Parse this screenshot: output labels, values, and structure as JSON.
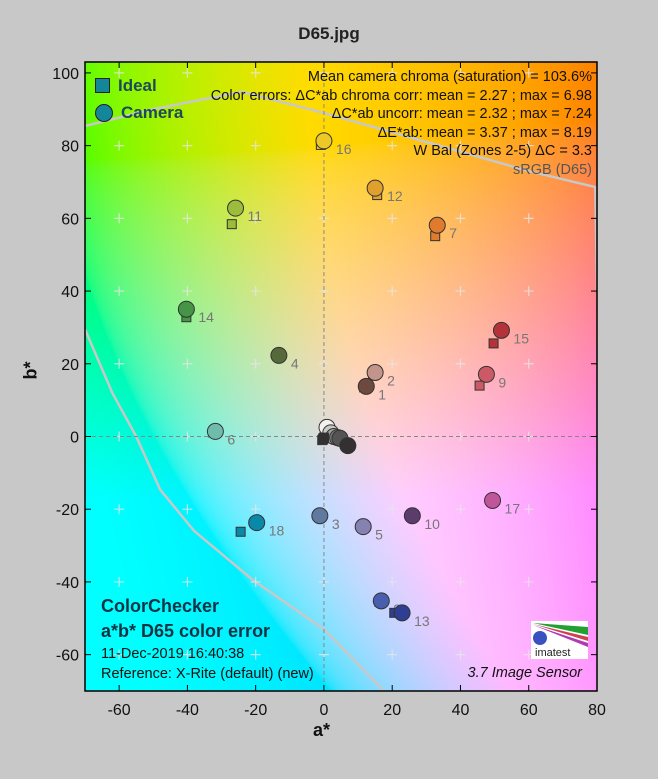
{
  "chart_data": {
    "type": "scatter",
    "title": "D65.jpg",
    "xlabel": "a*",
    "ylabel": "b*",
    "xlim": [
      -70,
      80
    ],
    "ylim": [
      -70,
      103
    ],
    "xticks": [
      -60,
      -40,
      -20,
      0,
      20,
      40,
      60,
      80
    ],
    "yticks": [
      -60,
      -40,
      -20,
      0,
      20,
      40,
      60,
      80,
      100
    ],
    "grid": "plus-markers every 20",
    "legend": {
      "placement": "top-left",
      "entries": [
        "Ideal",
        "Camera"
      ],
      "color": "#138699"
    },
    "points": [
      {
        "id": "1",
        "ideal": [
          11.8,
          13.5
        ],
        "camera": [
          12.4,
          13.8
        ],
        "color": "#6e4a3e"
      },
      {
        "id": "2",
        "ideal": [
          14.4,
          17.1
        ],
        "camera": [
          15.0,
          17.6
        ],
        "color": "#c2948a"
      },
      {
        "id": "3",
        "ideal": [
          -1.2,
          -21.8
        ],
        "camera": [
          -1.2,
          -21.8
        ],
        "color": "#5f7a9e"
      },
      {
        "id": "4",
        "ideal": [
          -13.5,
          22.0
        ],
        "camera": [
          -13.2,
          22.3
        ],
        "color": "#55693b"
      },
      {
        "id": "5",
        "ideal": [
          11.5,
          -24.8
        ],
        "camera": [
          11.5,
          -24.8
        ],
        "color": "#8582b2"
      },
      {
        "id": "6",
        "ideal": [
          -32.4,
          1.1
        ],
        "camera": [
          -31.8,
          1.4
        ],
        "color": "#70bcac"
      },
      {
        "id": "7",
        "ideal": [
          32.6,
          55.1
        ],
        "camera": [
          33.2,
          58.1
        ],
        "color": "#e07a2c"
      },
      {
        "id": "8",
        "ideal": [
          16.3,
          -45.5
        ],
        "camera": [
          16.8,
          -45.2
        ],
        "color": "#4a5eae"
      },
      {
        "id": "9",
        "ideal": [
          45.6,
          14.0
        ],
        "camera": [
          47.6,
          17.1
        ],
        "color": "#cc5a66"
      },
      {
        "id": "10",
        "ideal": [
          25.6,
          -22.0
        ],
        "camera": [
          25.9,
          -21.8
        ],
        "color": "#5c3c6c"
      },
      {
        "id": "11",
        "ideal": [
          -27.0,
          58.4
        ],
        "camera": [
          -25.9,
          62.8
        ],
        "color": "#9cbc3c"
      },
      {
        "id": "12",
        "ideal": [
          15.6,
          66.4
        ],
        "camera": [
          15.0,
          68.3
        ],
        "color": "#e0a02e"
      },
      {
        "id": "13",
        "ideal": [
          20.6,
          -48.5
        ],
        "camera": [
          22.9,
          -48.5
        ],
        "color": "#2e3e92"
      },
      {
        "id": "14",
        "ideal": [
          -40.3,
          32.8
        ],
        "camera": [
          -40.3,
          35.0
        ],
        "color": "#469446"
      },
      {
        "id": "15",
        "ideal": [
          49.7,
          25.6
        ],
        "camera": [
          52.0,
          29.2
        ],
        "color": "#b4323a"
      },
      {
        "id": "16",
        "ideal": [
          -0.9,
          80.2
        ],
        "camera": [
          0.0,
          81.3
        ],
        "color": "#eec826"
      },
      {
        "id": "17",
        "ideal": [
          49.4,
          -17.6
        ],
        "camera": [
          49.4,
          -17.6
        ],
        "color": "#c0559b"
      },
      {
        "id": "18",
        "ideal": [
          -24.4,
          -26.2
        ],
        "camera": [
          -19.7,
          -23.7
        ],
        "color": "#0a88a8"
      },
      {
        "id": "",
        "ideal": [
          -0.5,
          -1.0
        ],
        "camera": [
          0.9,
          2.5
        ],
        "color": "#f4f2ee"
      },
      {
        "id": "",
        "ideal": [
          -0.3,
          -0.8
        ],
        "camera": [
          2.0,
          1.0
        ],
        "color": "#c8c8c6"
      },
      {
        "id": "",
        "ideal": [
          -0.2,
          -0.6
        ],
        "camera": [
          2.9,
          0.0
        ],
        "color": "#a0a09e"
      },
      {
        "id": "",
        "ideal": [
          -0.1,
          -0.5
        ],
        "camera": [
          4.0,
          -0.3
        ],
        "color": "#787876"
      },
      {
        "id": "",
        "ideal": [
          0.0,
          -0.4
        ],
        "camera": [
          4.7,
          -0.5
        ],
        "color": "#545454"
      },
      {
        "id": "",
        "ideal": [
          0.0,
          -0.3
        ],
        "camera": [
          7.0,
          -2.5
        ],
        "color": "#343032"
      }
    ],
    "gamut_boundary": [
      [
        [
          -70,
          85.4
        ],
        [
          -50,
          90
        ],
        [
          -24,
          94.8
        ],
        [
          0,
          89
        ],
        [
          30,
          81
        ],
        [
          60,
          73
        ],
        [
          79.5,
          68.6
        ],
        [
          80,
          40
        ]
      ],
      [
        [
          -70,
          29.5
        ],
        [
          -62,
          12
        ],
        [
          -55,
          0
        ],
        [
          -48,
          -14.6
        ],
        [
          -38,
          -26
        ],
        [
          -20.9,
          -39.4
        ],
        [
          0,
          -53
        ],
        [
          18.2,
          -70.5
        ]
      ]
    ]
  },
  "stats": {
    "line1": "Mean camera chroma (saturation) = 103.6%",
    "line2": "Color errors: ΔC*ab chroma corr:  mean = 2.27 ;  max = 6.98",
    "line3": "ΔC*ab uncorr:  mean = 2.32 ;  max = 7.24",
    "line4": "ΔE*ab:  mean = 3.37 ;  max = 8.19",
    "line5": "W Bal (Zones 2-5) ΔC = 3.3",
    "line6": "sRGB (D65)"
  },
  "info": {
    "chart": "ColorChecker",
    "subtitle": "a*b* D65 color error",
    "date": "11-Dec-2019 16:40:38",
    "reference": "Reference: X-Rite (default) (new)"
  },
  "sensor": "3.7  Image Sensor",
  "logo_text": "imatest"
}
